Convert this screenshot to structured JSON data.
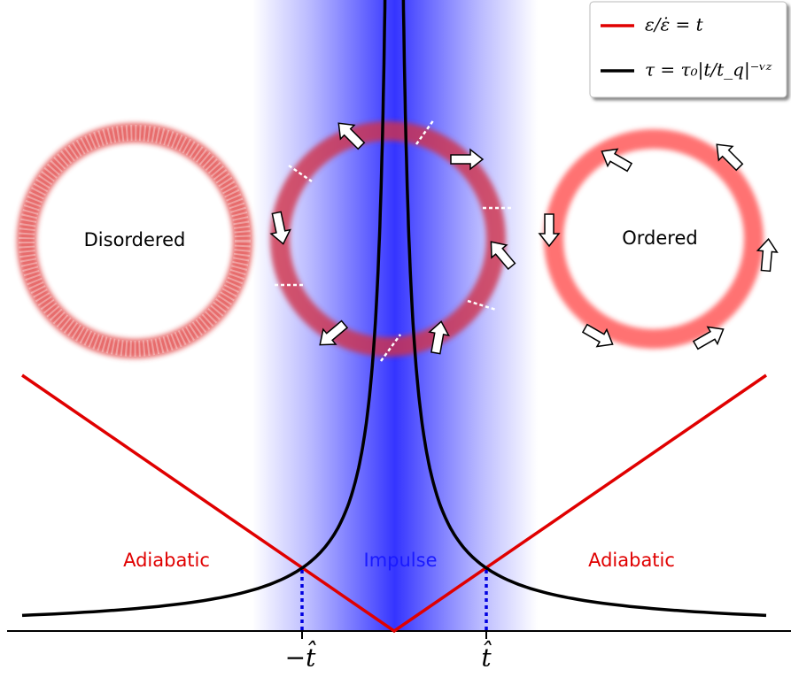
{
  "legend": [
    "ε/ε̇ = t",
    "τ = τ₀|t/t_q|⁻ᵛᶻ"
  ],
  "rings": [
    "Disordered",
    "Ordered"
  ],
  "regions": [
    "Adiabatic",
    "Impulse",
    "Adiabatic"
  ],
  "ticks": [
    "−t̂",
    "t̂"
  ]
}
